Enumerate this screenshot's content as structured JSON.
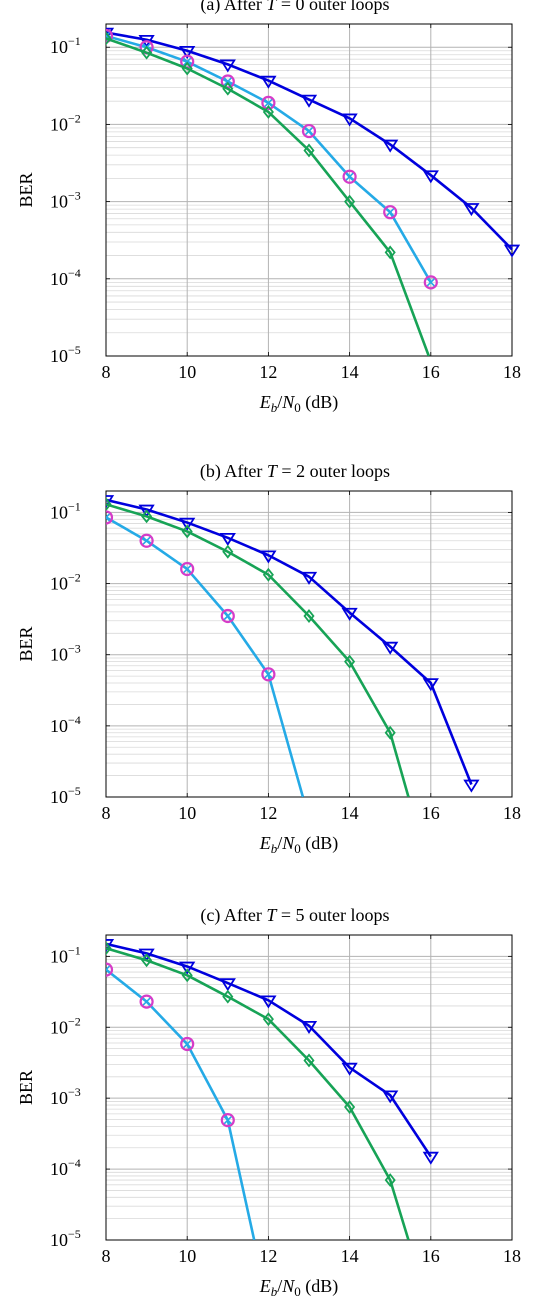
{
  "chart_data": [
    {
      "type": "line",
      "title": "(a) After T = 0 outer loops",
      "title_parts": {
        "prefix": "(a) After ",
        "variable": "T",
        "suffix": " = 0 outer loops"
      },
      "xlabel": "E_b/N_0 (dB)",
      "xlabel_parts": {
        "E": "E",
        "b": "b",
        "slash": "/",
        "N": "N",
        "zero": "0",
        "unit": " (dB)"
      },
      "ylabel": "BER",
      "xlim": [
        8,
        18
      ],
      "ylim": [
        1e-05,
        0.2
      ],
      "yscale": "log",
      "grid": true,
      "x_ticks": [
        8,
        10,
        12,
        14,
        16,
        18
      ],
      "x_tick_labels": [
        "8",
        "10",
        "12",
        "14",
        "16",
        "18"
      ],
      "y_ticks": [
        0.1,
        0.01,
        0.001,
        0.0001,
        1e-05
      ],
      "y_tick_exponents": [
        "−1",
        "−2",
        "−3",
        "−4",
        "−5"
      ],
      "y_tick_base": "10",
      "series": [
        {
          "color": "#0000dd",
          "marker": "triangle-down",
          "x": [
            8,
            9,
            10,
            11,
            12,
            13,
            14,
            15,
            16,
            17,
            18
          ],
          "y": [
            0.155,
            0.125,
            0.09,
            0.06,
            0.037,
            0.021,
            0.012,
            0.0055,
            0.0022,
            0.00083,
            0.00024
          ]
        },
        {
          "color": "#25aae6",
          "marker": "circle-cross",
          "x": [
            8,
            9,
            10,
            11,
            12,
            13,
            14,
            15,
            16
          ],
          "y": [
            0.14,
            0.1,
            0.065,
            0.036,
            0.019,
            0.0082,
            0.0021,
            0.00073,
            9e-05
          ]
        },
        {
          "color": "#17a356",
          "marker": "diamond",
          "x": [
            8,
            9,
            10,
            11,
            12,
            13,
            14,
            15,
            15.95
          ],
          "y": [
            0.13,
            0.085,
            0.053,
            0.029,
            0.0145,
            0.0046,
            0.001,
            0.00022,
            1e-05
          ]
        }
      ]
    },
    {
      "type": "line",
      "title": "(b) After T = 2 outer loops",
      "title_parts": {
        "prefix": "(b) After ",
        "variable": "T",
        "suffix": " = 2 outer loops"
      },
      "xlabel": "E_b/N_0 (dB)",
      "xlabel_parts": {
        "E": "E",
        "b": "b",
        "slash": "/",
        "N": "N",
        "zero": "0",
        "unit": " (dB)"
      },
      "ylabel": "BER",
      "xlim": [
        8,
        18
      ],
      "ylim": [
        1e-05,
        0.2
      ],
      "yscale": "log",
      "grid": true,
      "x_ticks": [
        8,
        10,
        12,
        14,
        16,
        18
      ],
      "x_tick_labels": [
        "8",
        "10",
        "12",
        "14",
        "16",
        "18"
      ],
      "y_ticks": [
        0.1,
        0.01,
        0.001,
        0.0001,
        1e-05
      ],
      "y_tick_exponents": [
        "−1",
        "−2",
        "−3",
        "−4",
        "−5"
      ],
      "y_tick_base": "10",
      "series": [
        {
          "color": "#0000dd",
          "marker": "triangle-down",
          "x": [
            8,
            9,
            10,
            11,
            12,
            13,
            14,
            15,
            16,
            17
          ],
          "y": [
            0.15,
            0.11,
            0.072,
            0.044,
            0.025,
            0.0125,
            0.0039,
            0.0013,
            0.0004,
            1.5e-05
          ]
        },
        {
          "color": "#17a356",
          "marker": "diamond",
          "x": [
            8,
            9,
            10,
            11,
            12,
            13,
            14,
            15,
            15.45
          ],
          "y": [
            0.13,
            0.088,
            0.054,
            0.028,
            0.0133,
            0.0035,
            0.0008,
            8e-05,
            1e-05
          ]
        },
        {
          "color": "#25aae6",
          "marker": "circle-cross",
          "x": [
            8,
            9,
            10,
            11,
            12,
            12.85
          ],
          "y": [
            0.085,
            0.04,
            0.016,
            0.0035,
            0.00053,
            1e-05
          ]
        }
      ]
    },
    {
      "type": "line",
      "title": "(c) After T = 5 outer loops",
      "title_parts": {
        "prefix": "(c) After ",
        "variable": "T",
        "suffix": " = 5 outer loops"
      },
      "xlabel": "E_b/N_0 (dB)",
      "xlabel_parts": {
        "E": "E",
        "b": "b",
        "slash": "/",
        "N": "N",
        "zero": "0",
        "unit": " (dB)"
      },
      "ylabel": "BER",
      "xlim": [
        8,
        18
      ],
      "ylim": [
        1e-05,
        0.2
      ],
      "yscale": "log",
      "grid": true,
      "x_ticks": [
        8,
        10,
        12,
        14,
        16,
        18
      ],
      "x_tick_labels": [
        "8",
        "10",
        "12",
        "14",
        "16",
        "18"
      ],
      "y_ticks": [
        0.1,
        0.01,
        0.001,
        0.0001,
        1e-05
      ],
      "y_tick_exponents": [
        "−1",
        "−2",
        "−3",
        "−4",
        "−5"
      ],
      "y_tick_base": "10",
      "series": [
        {
          "color": "#0000dd",
          "marker": "triangle-down",
          "x": [
            8,
            9,
            10,
            11,
            12,
            13,
            14,
            15,
            16
          ],
          "y": [
            0.15,
            0.11,
            0.072,
            0.042,
            0.024,
            0.0105,
            0.0027,
            0.0011,
            0.00015
          ]
        },
        {
          "color": "#17a356",
          "marker": "diamond",
          "x": [
            8,
            9,
            10,
            11,
            12,
            13,
            14,
            15,
            15.45
          ],
          "y": [
            0.13,
            0.088,
            0.054,
            0.027,
            0.013,
            0.0034,
            0.00075,
            7e-05,
            1e-05
          ]
        },
        {
          "color": "#25aae6",
          "marker": "circle-cross",
          "x": [
            8,
            9,
            10,
            11,
            11.65
          ],
          "y": [
            0.065,
            0.023,
            0.0058,
            0.00049,
            1e-05
          ]
        }
      ]
    }
  ],
  "marker_stroke_color": "#d63cc8"
}
